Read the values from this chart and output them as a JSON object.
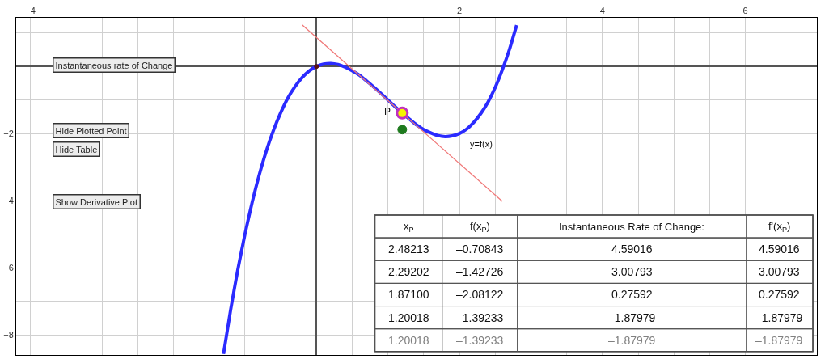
{
  "chart_data": {
    "type": "line",
    "xlim": [
      -4.2,
      7.0
    ],
    "ylim": [
      -8.6,
      1.45
    ],
    "xticks": [
      {
        "value": -4,
        "label": "−4"
      },
      {
        "value": -3.5,
        "label": null
      },
      {
        "value": -3,
        "label": null
      },
      {
        "value": -2.5,
        "label": null
      },
      {
        "value": -2,
        "label": null
      },
      {
        "value": -1.5,
        "label": null
      },
      {
        "value": -1,
        "label": null
      },
      {
        "value": -0.5,
        "label": null
      },
      {
        "value": 0,
        "label": null
      },
      {
        "value": 0.5,
        "label": null
      },
      {
        "value": 1,
        "label": null
      },
      {
        "value": 1.5,
        "label": null
      },
      2,
      {
        "value": 2.5,
        "label": null
      },
      {
        "value": 3,
        "label": null
      },
      {
        "value": 3.5,
        "label": null
      },
      4,
      {
        "value": 4.5,
        "label": null
      },
      {
        "value": 5,
        "label": null
      },
      {
        "value": 5.5,
        "label": null
      },
      6,
      {
        "value": 6.5,
        "label": null
      }
    ],
    "yticks": [
      {
        "value": -8,
        "label": "−8"
      },
      {
        "value": -7,
        "label": null
      },
      {
        "value": -6,
        "label": "−6"
      },
      {
        "value": -5,
        "label": null
      },
      {
        "value": -4,
        "label": "−4"
      },
      {
        "value": -3,
        "label": null
      },
      {
        "value": -2,
        "label": "−2"
      },
      {
        "value": -1,
        "label": null
      },
      {
        "value": 0,
        "label": null
      },
      {
        "value": 1,
        "label": null
      }
    ],
    "grid": true,
    "series": [
      {
        "color": "#2b2bff",
        "x": [
          -1.3,
          -1.2,
          -1.1,
          -1.0,
          -0.9,
          -0.8,
          -0.7,
          -0.6,
          -0.5,
          -0.4,
          -0.3,
          -0.2,
          -0.1,
          0,
          0.1,
          0.2,
          0.3,
          0.4,
          0.5,
          0.6,
          0.7,
          0.8,
          0.9,
          1.0,
          1.1,
          1.2,
          1.3,
          1.4,
          1.5,
          1.6,
          1.7,
          1.8,
          1.9,
          2.0,
          2.1,
          2.2,
          2.3,
          2.4,
          2.5,
          2.6,
          2.7,
          2.8
        ],
        "values": [
          -8.57,
          -7.25,
          -6.06,
          -5,
          -4.06,
          -3.23,
          -2.51,
          -1.9,
          -1.38,
          -0.94,
          -0.6,
          -0.33,
          -0.13,
          0,
          0.07,
          0.09,
          0.06,
          -0.02,
          -0.13,
          -0.26,
          -0.43,
          -0.61,
          -0.8,
          -1,
          -1.2,
          -1.39,
          -1.57,
          -1.74,
          -1.88,
          -1.98,
          -2.06,
          -2.09,
          -2.07,
          -2,
          -1.87,
          -1.67,
          -1.4,
          -1.06,
          -0.63,
          -0.1,
          0.51,
          1.23
        ]
      },
      {
        "type": "line",
        "color": "#f07878",
        "x": [
          -0.2,
          2.6
        ],
        "values": [
          1.24,
          -4.02
        ]
      },
      {
        "type": "scatter",
        "color": "#5a1010",
        "x": [
          0
        ],
        "values": [
          0
        ]
      },
      {
        "type": "scatter",
        "color": "#1e7a1e",
        "x": [
          1.2
        ],
        "values": [
          -1.88
        ]
      },
      {
        "type": "scatter",
        "color": "#f5f500",
        "x": [
          1.2
        ],
        "values": [
          -1.39
        ]
      }
    ],
    "annotations": [
      "Instantaneous rate of Change",
      "Hide Plotted Point",
      "Hide Table",
      "Show Derivative Plot",
      "x$_{P}$",
      "f(x$_{P}$)",
      "Instantaneous Rate of Change:",
      "f'(x$_{P}$)",
      "2.48213",
      "–0.70843",
      "4.59016",
      "4.59016",
      "2.29202",
      "–1.42726",
      "3.00793",
      "3.00793",
      "1.87100",
      "–2.08122",
      "0.27592",
      "0.27592",
      "1.20018",
      "–1.39233",
      "–1.87979",
      "–1.87979",
      "1.20018",
      "–1.39233",
      "–1.87979",
      "–1.87979",
      {
        "text": "P",
        "x": 1.2,
        "y": -1.39
      },
      "y=f(x)"
    ]
  }
}
